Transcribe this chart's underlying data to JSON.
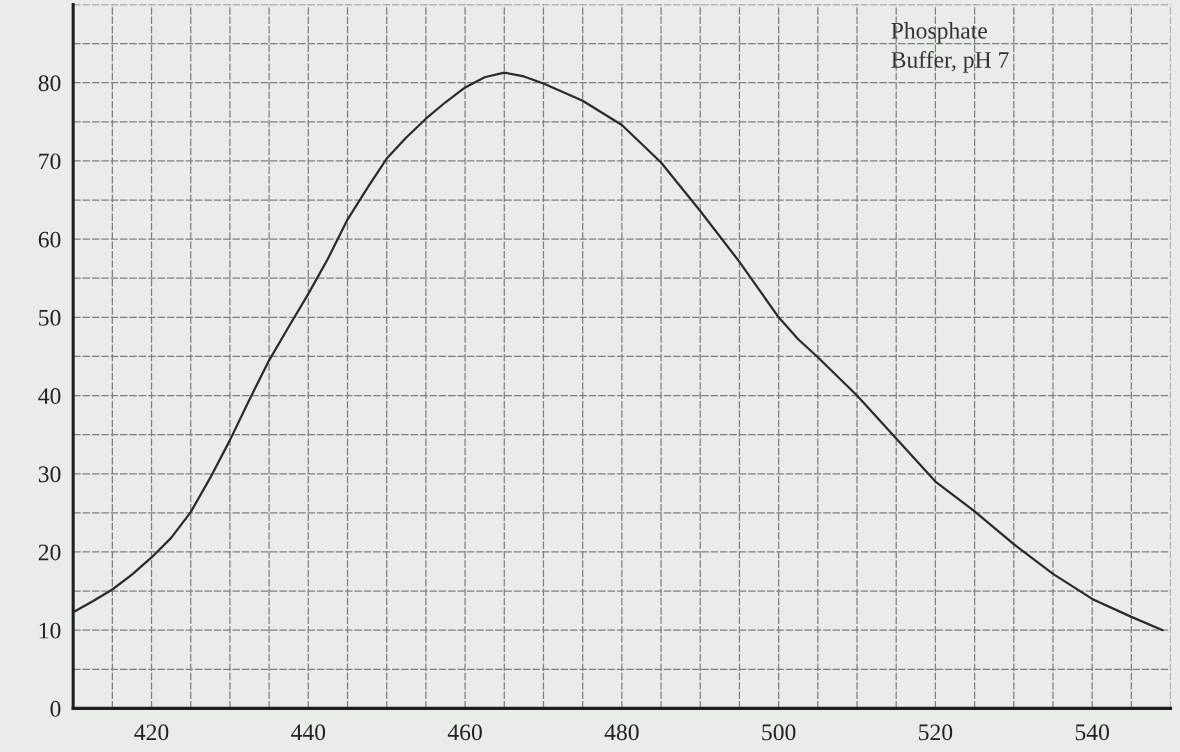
{
  "chart_data": {
    "type": "line",
    "x": [
      410,
      412.5,
      415,
      417.5,
      420,
      422.5,
      425,
      427.5,
      430,
      432.5,
      435,
      437.5,
      440,
      442.5,
      445,
      447.5,
      450,
      452.5,
      455,
      457.5,
      460,
      462.5,
      465,
      467.5,
      470,
      475,
      480,
      485,
      490,
      495,
      500,
      502.5,
      505,
      510,
      515,
      520,
      525,
      530,
      535,
      540,
      545,
      549
    ],
    "series": [
      {
        "color": "#2b2b2b",
        "values": [
          12.3,
          13.7,
          15.2,
          17.1,
          19.3,
          21.8,
          25.1,
          29.5,
          34.3,
          39.5,
          44.5,
          48.8,
          53,
          57.5,
          62.5,
          66.5,
          70.3,
          73,
          75.4,
          77.5,
          79.4,
          80.7,
          81.3,
          80.8,
          79.9,
          77.7,
          74.6,
          69.8,
          63.6,
          57.1,
          50,
          47.2,
          44.9,
          40,
          34.5,
          29,
          25.2,
          21,
          17.2,
          14,
          11.7,
          10
        ]
      }
    ],
    "xlim": [
      410,
      550
    ],
    "xticks": [
      {
        "value": 410,
        "label": null
      },
      {
        "value": 415,
        "label": null
      },
      420,
      {
        "value": 425,
        "label": null
      },
      {
        "value": 430,
        "label": null
      },
      {
        "value": 435,
        "label": null
      },
      440,
      {
        "value": 445,
        "label": null
      },
      {
        "value": 450,
        "label": null
      },
      {
        "value": 455,
        "label": null
      },
      460,
      {
        "value": 465,
        "label": null
      },
      {
        "value": 470,
        "label": null
      },
      {
        "value": 475,
        "label": null
      },
      480,
      {
        "value": 485,
        "label": null
      },
      {
        "value": 490,
        "label": null
      },
      {
        "value": 495,
        "label": null
      },
      500,
      {
        "value": 505,
        "label": null
      },
      {
        "value": 510,
        "label": null
      },
      {
        "value": 515,
        "label": null
      },
      520,
      {
        "value": 525,
        "label": null
      },
      {
        "value": 530,
        "label": null
      },
      {
        "value": 535,
        "label": null
      },
      540,
      {
        "value": 545,
        "label": null
      },
      {
        "value": 550,
        "label": null
      }
    ],
    "ylim": [
      0,
      90
    ],
    "yticks": [
      0,
      {
        "value": 5,
        "label": null
      },
      10,
      {
        "value": 15,
        "label": null
      },
      20,
      {
        "value": 25,
        "label": null
      },
      30,
      {
        "value": 35,
        "label": null
      },
      40,
      {
        "value": 45,
        "label": null
      },
      50,
      {
        "value": 55,
        "label": null
      },
      60,
      {
        "value": 65,
        "label": null
      },
      70,
      {
        "value": 75,
        "label": null
      },
      80,
      {
        "value": 85,
        "label": null
      },
      {
        "value": 90,
        "label": null
      }
    ],
    "grid": true,
    "line_style": "solid",
    "annotations": [
      "Phosphate\nBuffer, pH 7"
    ]
  }
}
